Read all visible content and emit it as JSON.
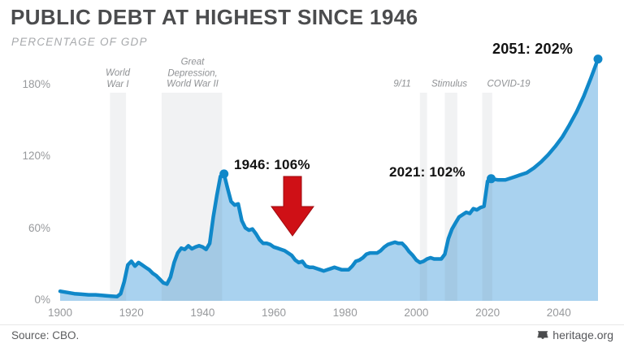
{
  "chart_data": {
    "type": "area",
    "title": "PUBLIC DEBT AT HIGHEST SINCE 1946",
    "subtitle": "PERCENTAGE OF GDP",
    "x_range": [
      1900,
      2051
    ],
    "ylim": [
      0,
      210
    ],
    "grid": false,
    "legend": false,
    "x_ticks": [
      "1900",
      "1920",
      "1940",
      "1960",
      "1980",
      "2000",
      "2020",
      "2040"
    ],
    "y_ticks": [
      {
        "label": "0%",
        "value": 0
      },
      {
        "label": "60%",
        "value": 60
      },
      {
        "label": "120%",
        "value": 120
      },
      {
        "label": "180%",
        "value": 180
      }
    ],
    "series": [
      {
        "name": "Public debt as percentage of GDP",
        "color": "#1088c9",
        "fill": "#a9d2ef",
        "points": [
          [
            1900,
            8
          ],
          [
            1902,
            7
          ],
          [
            1904,
            6
          ],
          [
            1906,
            5.5
          ],
          [
            1908,
            5
          ],
          [
            1910,
            5
          ],
          [
            1912,
            4.5
          ],
          [
            1914,
            4
          ],
          [
            1916,
            3.5
          ],
          [
            1917,
            6
          ],
          [
            1918,
            16
          ],
          [
            1919,
            30
          ],
          [
            1920,
            33
          ],
          [
            1921,
            29
          ],
          [
            1922,
            32
          ],
          [
            1923,
            30
          ],
          [
            1924,
            28
          ],
          [
            1925,
            26
          ],
          [
            1926,
            23
          ],
          [
            1927,
            21
          ],
          [
            1928,
            18
          ],
          [
            1929,
            15
          ],
          [
            1930,
            14
          ],
          [
            1931,
            20
          ],
          [
            1932,
            32
          ],
          [
            1933,
            40
          ],
          [
            1934,
            44
          ],
          [
            1935,
            43
          ],
          [
            1936,
            46
          ],
          [
            1937,
            43.5
          ],
          [
            1938,
            45
          ],
          [
            1939,
            46
          ],
          [
            1940,
            45
          ],
          [
            1941,
            43
          ],
          [
            1942,
            48
          ],
          [
            1943,
            70
          ],
          [
            1944,
            88
          ],
          [
            1945,
            104
          ],
          [
            1946,
            106
          ],
          [
            1947,
            94
          ],
          [
            1948,
            83
          ],
          [
            1949,
            80
          ],
          [
            1950,
            81
          ],
          [
            1951,
            67
          ],
          [
            1952,
            61
          ],
          [
            1953,
            59
          ],
          [
            1954,
            60
          ],
          [
            1955,
            56
          ],
          [
            1956,
            51
          ],
          [
            1957,
            48
          ],
          [
            1958,
            48
          ],
          [
            1959,
            47
          ],
          [
            1960,
            45
          ],
          [
            1961,
            44
          ],
          [
            1962,
            43
          ],
          [
            1963,
            42
          ],
          [
            1964,
            40
          ],
          [
            1965,
            38
          ],
          [
            1966,
            34
          ],
          [
            1967,
            32
          ],
          [
            1968,
            33
          ],
          [
            1969,
            29
          ],
          [
            1970,
            28
          ],
          [
            1971,
            28
          ],
          [
            1972,
            27
          ],
          [
            1973,
            26
          ],
          [
            1974,
            25
          ],
          [
            1975,
            26
          ],
          [
            1976,
            27
          ],
          [
            1977,
            28
          ],
          [
            1978,
            27
          ],
          [
            1979,
            26
          ],
          [
            1980,
            26
          ],
          [
            1981,
            26
          ],
          [
            1982,
            29
          ],
          [
            1983,
            33
          ],
          [
            1984,
            34
          ],
          [
            1985,
            36
          ],
          [
            1986,
            39
          ],
          [
            1987,
            40
          ],
          [
            1988,
            40
          ],
          [
            1989,
            40
          ],
          [
            1990,
            42
          ],
          [
            1991,
            45
          ],
          [
            1992,
            47
          ],
          [
            1993,
            48
          ],
          [
            1994,
            49
          ],
          [
            1995,
            48
          ],
          [
            1996,
            48
          ],
          [
            1997,
            45
          ],
          [
            1998,
            41
          ],
          [
            1999,
            38
          ],
          [
            2000,
            34
          ],
          [
            2001,
            32
          ],
          [
            2002,
            33
          ],
          [
            2003,
            35
          ],
          [
            2004,
            36
          ],
          [
            2005,
            35
          ],
          [
            2006,
            35
          ],
          [
            2007,
            35
          ],
          [
            2008,
            39
          ],
          [
            2009,
            52
          ],
          [
            2010,
            60
          ],
          [
            2011,
            65
          ],
          [
            2012,
            70
          ],
          [
            2013,
            72
          ],
          [
            2014,
            74
          ],
          [
            2015,
            73
          ],
          [
            2016,
            77
          ],
          [
            2017,
            76
          ],
          [
            2018,
            78
          ],
          [
            2019,
            79
          ],
          [
            2020,
            100
          ],
          [
            2021,
            102
          ],
          [
            2023,
            101
          ],
          [
            2025,
            101
          ],
          [
            2027,
            103
          ],
          [
            2029,
            105
          ],
          [
            2031,
            107
          ],
          [
            2033,
            111
          ],
          [
            2035,
            116
          ],
          [
            2037,
            122
          ],
          [
            2039,
            129
          ],
          [
            2041,
            137
          ],
          [
            2043,
            147
          ],
          [
            2045,
            158
          ],
          [
            2047,
            171
          ],
          [
            2049,
            186
          ],
          [
            2051,
            202
          ]
        ]
      }
    ],
    "events": [
      {
        "label": "World\nWar I",
        "start": 1914,
        "end": 1918.5
      },
      {
        "label": "Great\nDepression,\nWorld War II",
        "start": 1928.5,
        "end": 1945.5
      },
      {
        "label": "9/11",
        "start": 2001,
        "end": 2003
      },
      {
        "label": "Stimulus",
        "start": 2008,
        "end": 2011.5
      },
      {
        "label": "COVID-19",
        "start": 2018.5,
        "end": 2021.3
      }
    ],
    "callouts": [
      {
        "text": "1946: 106%",
        "year": 1946,
        "value": 106
      },
      {
        "text": "2021: 102%",
        "year": 2021,
        "value": 102
      },
      {
        "text": "2051: 202%",
        "year": 2051,
        "value": 202
      }
    ],
    "annotations": [
      {
        "type": "down-arrow",
        "color": "#cf1016"
      }
    ]
  },
  "footer": {
    "source": "Source: CBO.",
    "brand": "heritage.org",
    "brand_icon": "liberty-bell-icon"
  },
  "colors": {
    "line": "#1088c9",
    "area_fill": "#a9d2ef",
    "event_band_overlay": "rgba(121,128,135,0.10)",
    "title_text": "#4b4c4e",
    "muted_text": "#97999c",
    "annotation_text": "#8f9194",
    "callout_text": "#121212",
    "arrow_red": "#cf1016",
    "divider": "#e8e8e8"
  }
}
